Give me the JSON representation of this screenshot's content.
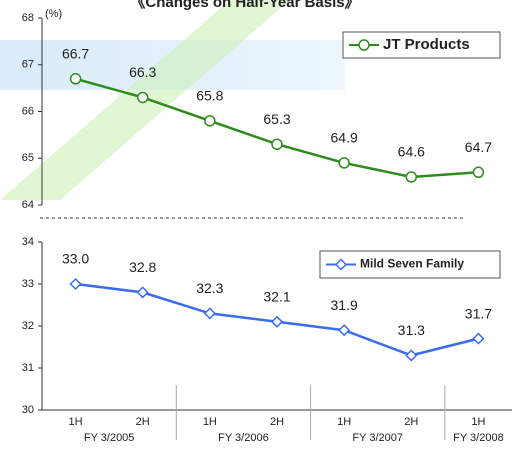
{
  "title": "《Changes on Half-Year Basis》",
  "chart_data": [
    {
      "type": "line",
      "ylabel": "(%)",
      "series": [
        {
          "name": "JT Products",
          "color": "#2e8b1e",
          "values": [
            66.7,
            66.3,
            65.8,
            65.3,
            64.9,
            64.6,
            64.7
          ]
        }
      ],
      "ylim": [
        64,
        68
      ],
      "yticks": [
        64,
        65,
        66,
        67,
        68
      ],
      "legend": "upper right",
      "marker": "circle"
    },
    {
      "type": "line",
      "categories": [
        "1H",
        "2H",
        "1H",
        "2H",
        "1H",
        "2H",
        "1H"
      ],
      "groups": [
        "FY 3/2005",
        "FY 3/2006",
        "FY 3/2007",
        "FY 3/2008"
      ],
      "series": [
        {
          "name": "Mild Seven Family",
          "color": "#3a6cf0",
          "values": [
            33,
            32.8,
            32.3,
            32.1,
            31.9,
            31.3,
            31.7
          ],
          "value_labels": [
            "33.0",
            "32.8",
            "32.3",
            "32.1",
            "31.9",
            "31.3",
            "31.7"
          ]
        }
      ],
      "ylim": [
        30,
        34
      ],
      "yticks": [
        30,
        31,
        32,
        33,
        34
      ],
      "legend": "upper right",
      "marker": "diamond"
    }
  ]
}
